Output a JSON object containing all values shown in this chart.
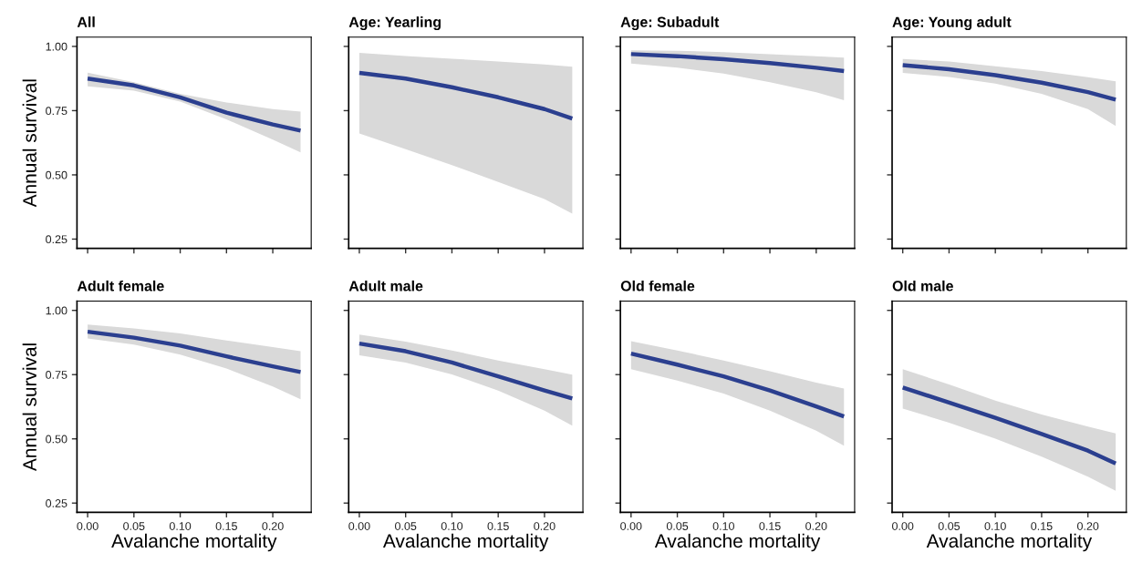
{
  "chart_data": [
    {
      "type": "line",
      "title": "All",
      "ylabel": "Annual survival",
      "tick_labels": "y",
      "x": [
        0,
        0.05,
        0.1,
        0.15,
        0.2,
        0.23
      ],
      "xlim": [
        -0.0115,
        0.2415
      ],
      "ylim": [
        0.214,
        1.036
      ],
      "xticks": [
        0,
        0.05,
        0.1,
        0.15,
        0.2
      ],
      "yticks": [
        {
          "value": 0.25,
          "label": "0.25"
        },
        {
          "value": 0.5,
          "label": "0.50"
        },
        {
          "value": 0.75,
          "label": "0.75"
        },
        {
          "value": 1,
          "label": "1.00"
        }
      ],
      "series": [
        {
          "color": "#2b3f8f",
          "values": [
            0.875,
            0.848,
            0.802,
            0.742,
            0.696,
            0.672
          ],
          "lower": [
            0.845,
            0.828,
            0.785,
            0.716,
            0.637,
            0.588
          ],
          "upper": [
            0.898,
            0.861,
            0.815,
            0.782,
            0.756,
            0.746
          ]
        }
      ]
    },
    {
      "type": "line",
      "title": "Age: Yearling",
      "tick_labels": false,
      "x": [
        0,
        0.05,
        0.1,
        0.15,
        0.2,
        0.23
      ],
      "xlim": [
        -0.0115,
        0.2415
      ],
      "ylim": [
        0.214,
        1.036
      ],
      "xticks": [
        0,
        0.05,
        0.1,
        0.15,
        0.2
      ],
      "yticks": [
        0.25,
        0.5,
        0.75,
        1
      ],
      "series": [
        {
          "color": "#2b3f8f",
          "values": [
            0.897,
            0.875,
            0.841,
            0.802,
            0.756,
            0.719
          ],
          "lower": [
            0.661,
            0.6,
            0.538,
            0.472,
            0.406,
            0.349
          ],
          "upper": [
            0.975,
            0.963,
            0.952,
            0.941,
            0.93,
            0.921
          ]
        }
      ]
    },
    {
      "type": "line",
      "title": "Age: Subadult",
      "tick_labels": false,
      "x": [
        0,
        0.05,
        0.1,
        0.15,
        0.2,
        0.23
      ],
      "xlim": [
        -0.0115,
        0.2415
      ],
      "ylim": [
        0.214,
        1.036
      ],
      "xticks": [
        0,
        0.05,
        0.1,
        0.15,
        0.2
      ],
      "yticks": [
        0.25,
        0.5,
        0.75,
        1
      ],
      "series": [
        {
          "color": "#2b3f8f",
          "values": [
            0.97,
            0.962,
            0.95,
            0.935,
            0.917,
            0.904
          ],
          "lower": [
            0.933,
            0.917,
            0.894,
            0.861,
            0.822,
            0.791
          ],
          "upper": [
            0.985,
            0.983,
            0.978,
            0.97,
            0.962,
            0.956
          ]
        }
      ]
    },
    {
      "type": "line",
      "title": "Age: Young adult",
      "tick_labels": false,
      "x": [
        0,
        0.05,
        0.1,
        0.15,
        0.2,
        0.23
      ],
      "xlim": [
        -0.0115,
        0.2415
      ],
      "ylim": [
        0.214,
        1.036
      ],
      "xticks": [
        0,
        0.05,
        0.1,
        0.15,
        0.2
      ],
      "yticks": [
        0.25,
        0.5,
        0.75,
        1
      ],
      "series": [
        {
          "color": "#2b3f8f",
          "values": [
            0.927,
            0.911,
            0.888,
            0.859,
            0.822,
            0.793
          ],
          "lower": [
            0.897,
            0.881,
            0.855,
            0.815,
            0.756,
            0.69
          ],
          "upper": [
            0.951,
            0.941,
            0.923,
            0.904,
            0.88,
            0.864
          ]
        }
      ]
    },
    {
      "type": "line",
      "title": "Adult female",
      "xlabel": "Avalanche mortality",
      "ylabel": "Annual survival",
      "x": [
        0,
        0.05,
        0.1,
        0.15,
        0.2,
        0.23
      ],
      "xlim": [
        -0.0115,
        0.2415
      ],
      "ylim": [
        0.214,
        1.036
      ],
      "xticks": [
        {
          "value": 0,
          "label": "0.00"
        },
        {
          "value": 0.05,
          "label": "0.05"
        },
        {
          "value": 0.1,
          "label": "0.10"
        },
        {
          "value": 0.15,
          "label": "0.15"
        },
        {
          "value": 0.2,
          "label": "0.20"
        }
      ],
      "yticks": [
        {
          "value": 0.25,
          "label": "0.25"
        },
        {
          "value": 0.5,
          "label": "0.50"
        },
        {
          "value": 0.75,
          "label": "0.75"
        },
        {
          "value": 1,
          "label": "1.00"
        }
      ],
      "series": [
        {
          "color": "#2b3f8f",
          "values": [
            0.917,
            0.894,
            0.863,
            0.821,
            0.782,
            0.76
          ],
          "lower": [
            0.891,
            0.867,
            0.828,
            0.774,
            0.704,
            0.654
          ],
          "upper": [
            0.945,
            0.93,
            0.91,
            0.883,
            0.857,
            0.841
          ]
        }
      ]
    },
    {
      "type": "line",
      "title": "Adult male",
      "xlabel": "Avalanche mortality",
      "tick_labels": "x",
      "x": [
        0,
        0.05,
        0.1,
        0.15,
        0.2,
        0.23
      ],
      "xlim": [
        -0.0115,
        0.2415
      ],
      "ylim": [
        0.214,
        1.036
      ],
      "xticks": [
        {
          "value": 0,
          "label": "0.00"
        },
        {
          "value": 0.05,
          "label": "0.05"
        },
        {
          "value": 0.1,
          "label": "0.10"
        },
        {
          "value": 0.15,
          "label": "0.15"
        },
        {
          "value": 0.2,
          "label": "0.20"
        }
      ],
      "yticks": [
        0.25,
        0.5,
        0.75,
        1
      ],
      "series": [
        {
          "color": "#2b3f8f",
          "values": [
            0.871,
            0.841,
            0.797,
            0.743,
            0.688,
            0.657
          ],
          "lower": [
            0.825,
            0.797,
            0.751,
            0.688,
            0.61,
            0.551
          ],
          "upper": [
            0.906,
            0.878,
            0.844,
            0.805,
            0.771,
            0.75
          ]
        }
      ]
    },
    {
      "type": "line",
      "title": "Old female",
      "xlabel": "Avalanche mortality",
      "tick_labels": "x",
      "x": [
        0,
        0.05,
        0.1,
        0.15,
        0.2,
        0.23
      ],
      "xlim": [
        -0.0115,
        0.2415
      ],
      "ylim": [
        0.214,
        1.036
      ],
      "xticks": [
        {
          "value": 0,
          "label": "0.00"
        },
        {
          "value": 0.05,
          "label": "0.05"
        },
        {
          "value": 0.1,
          "label": "0.10"
        },
        {
          "value": 0.15,
          "label": "0.15"
        },
        {
          "value": 0.2,
          "label": "0.20"
        }
      ],
      "yticks": [
        0.25,
        0.5,
        0.75,
        1
      ],
      "series": [
        {
          "color": "#2b3f8f",
          "values": [
            0.832,
            0.789,
            0.743,
            0.688,
            0.626,
            0.587
          ],
          "lower": [
            0.771,
            0.727,
            0.676,
            0.61,
            0.532,
            0.473
          ],
          "upper": [
            0.88,
            0.844,
            0.805,
            0.763,
            0.719,
            0.696
          ]
        }
      ]
    },
    {
      "type": "line",
      "title": "Old male",
      "xlabel": "Avalanche mortality",
      "tick_labels": "x",
      "x": [
        0,
        0.05,
        0.1,
        0.15,
        0.2,
        0.23
      ],
      "xlim": [
        -0.0115,
        0.2415
      ],
      "ylim": [
        0.214,
        1.036
      ],
      "xticks": [
        {
          "value": 0,
          "label": "0.00"
        },
        {
          "value": 0.05,
          "label": "0.05"
        },
        {
          "value": 0.1,
          "label": "0.10"
        },
        {
          "value": 0.15,
          "label": "0.15"
        },
        {
          "value": 0.2,
          "label": "0.20"
        }
      ],
      "yticks": [
        0.25,
        0.5,
        0.75,
        1
      ],
      "series": [
        {
          "color": "#2b3f8f",
          "values": [
            0.7,
            0.641,
            0.582,
            0.519,
            0.454,
            0.404
          ],
          "lower": [
            0.618,
            0.563,
            0.501,
            0.431,
            0.353,
            0.298
          ],
          "upper": [
            0.771,
            0.712,
            0.649,
            0.595,
            0.548,
            0.521
          ]
        }
      ]
    }
  ]
}
